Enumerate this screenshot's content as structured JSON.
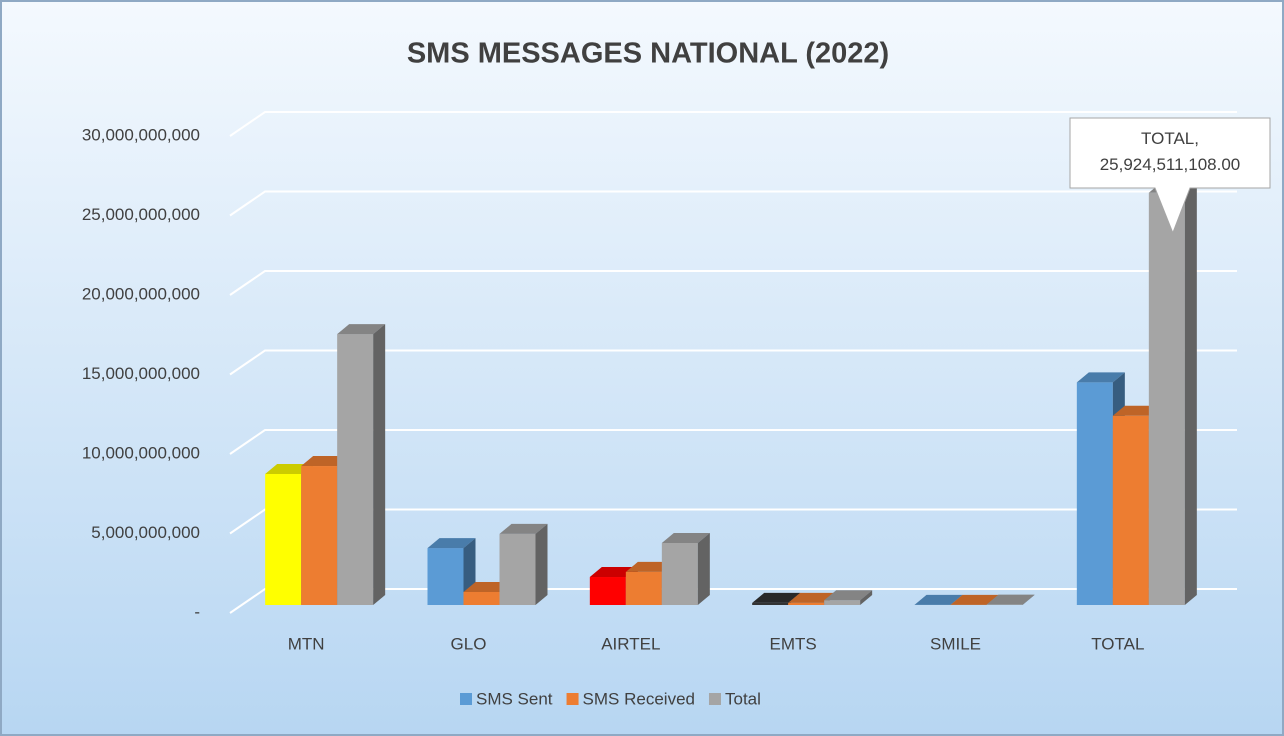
{
  "chart_data": {
    "type": "bar3d",
    "title": "SMS MESSAGES NATIONAL (2022)",
    "categories": [
      "MTN",
      "GLO",
      "AIRTEL",
      "EMTS",
      "SMILE",
      "TOTAL"
    ],
    "series": [
      {
        "name": "SMS Sent",
        "color": "#5b9bd5",
        "point_colors": [
          "#ffff00",
          "#5b9bd5",
          "#ff0000",
          "#333333",
          "#5b9bd5",
          "#5b9bd5"
        ],
        "values": [
          8240000000,
          3580000000,
          1760000000,
          130000000,
          10000000,
          14000000000
        ]
      },
      {
        "name": "SMS Received",
        "color": "#ed7d31",
        "values": [
          8740000000,
          820000000,
          2080000000,
          130000000,
          10000000,
          11900000000
        ]
      },
      {
        "name": "Total",
        "color": "#a5a5a5",
        "values": [
          17040000000,
          4470000000,
          3900000000,
          300000000,
          20000000,
          25924511108
        ],
        "value_labels": [
          null,
          null,
          null,
          null,
          null,
          "TOTAL, 25,924,511,108.00"
        ]
      }
    ],
    "ylim": [
      0,
      30000000000
    ],
    "yticks": [
      {
        "value": 0,
        "label": "-"
      },
      {
        "value": 5000000000,
        "label": "5,000,000,000"
      },
      {
        "value": 10000000000,
        "label": "10,000,000,000"
      },
      {
        "value": 15000000000,
        "label": "15,000,000,000"
      },
      {
        "value": 20000000000,
        "label": "20,000,000,000"
      },
      {
        "value": 25000000000,
        "label": "25,000,000,000"
      },
      {
        "value": 30000000000,
        "label": "30,000,000,000"
      }
    ],
    "grid": true,
    "legend": "bottom"
  }
}
